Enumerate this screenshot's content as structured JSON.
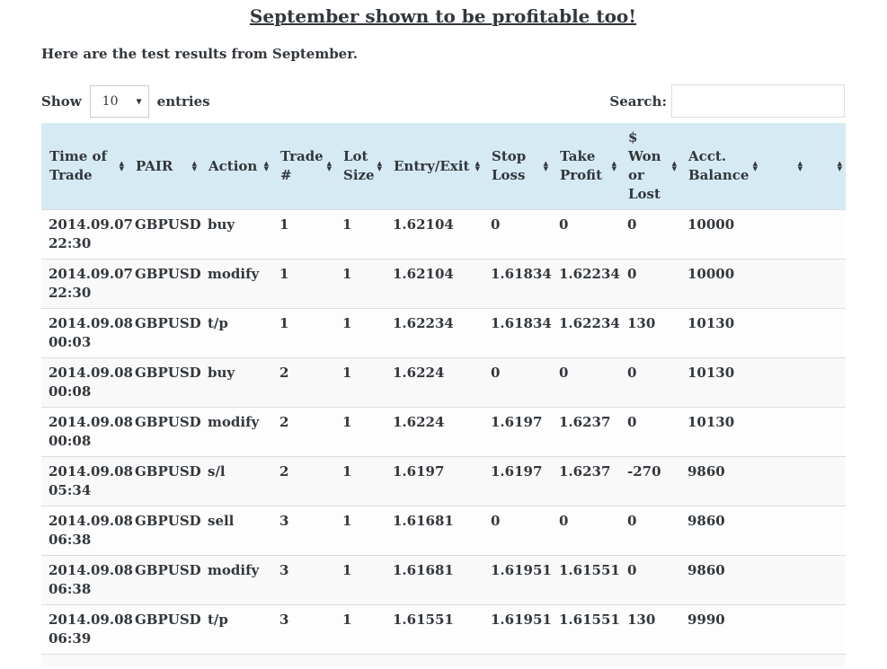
{
  "page": {
    "title": "September shown to be profitable too!",
    "intro": "Here are the test results from September."
  },
  "controls": {
    "show_label": "Show",
    "entries_label": "entries",
    "page_length": "10",
    "search_label": "Search:",
    "search_value": ""
  },
  "icons": {
    "sort": "up-down-triangles",
    "select_arrow": "down-triangle"
  },
  "colors": {
    "header_bg": "#d6eaf3",
    "stripe_bg": "#f9f9f9",
    "row_border": "#dddddd",
    "text": "#32373c"
  },
  "table": {
    "columns": [
      {
        "label": "Time of Trade"
      },
      {
        "label": "PAIR"
      },
      {
        "label": "Action"
      },
      {
        "label": "Trade #"
      },
      {
        "label": "Lot Size"
      },
      {
        "label": "Entry/Exit"
      },
      {
        "label": "Stop Loss"
      },
      {
        "label": "Take Profit"
      },
      {
        "label": "$ Won or Lost"
      },
      {
        "label": "Acct. Balance"
      },
      {
        "label": ""
      },
      {
        "label": ""
      }
    ],
    "rows": [
      [
        "2014.09.07 22:30",
        "GBPUSD",
        "buy",
        "1",
        "1",
        "1.62104",
        "0",
        "0",
        "0",
        "10000",
        "",
        ""
      ],
      [
        "2014.09.07 22:30",
        "GBPUSD",
        "modify",
        "1",
        "1",
        "1.62104",
        "1.61834",
        "1.62234",
        "0",
        "10000",
        "",
        ""
      ],
      [
        "2014.09.08 00:03",
        "GBPUSD",
        "t/p",
        "1",
        "1",
        "1.62234",
        "1.61834",
        "1.62234",
        "130",
        "10130",
        "",
        ""
      ],
      [
        "2014.09.08 00:08",
        "GBPUSD",
        "buy",
        "2",
        "1",
        "1.6224",
        "0",
        "0",
        "0",
        "10130",
        "",
        ""
      ],
      [
        "2014.09.08 00:08",
        "GBPUSD",
        "modify",
        "2",
        "1",
        "1.6224",
        "1.6197",
        "1.6237",
        "0",
        "10130",
        "",
        ""
      ],
      [
        "2014.09.08 05:34",
        "GBPUSD",
        "s/l",
        "2",
        "1",
        "1.6197",
        "1.6197",
        "1.6237",
        "-270",
        "9860",
        "",
        ""
      ],
      [
        "2014.09.08 06:38",
        "GBPUSD",
        "sell",
        "3",
        "1",
        "1.61681",
        "0",
        "0",
        "0",
        "9860",
        "",
        ""
      ],
      [
        "2014.09.08 06:38",
        "GBPUSD",
        "modify",
        "3",
        "1",
        "1.61681",
        "1.61951",
        "1.61551",
        "0",
        "9860",
        "",
        ""
      ],
      [
        "2014.09.08 06:39",
        "GBPUSD",
        "t/p",
        "3",
        "1",
        "1.61551",
        "1.61951",
        "1.61551",
        "130",
        "9990",
        "",
        ""
      ]
    ]
  }
}
